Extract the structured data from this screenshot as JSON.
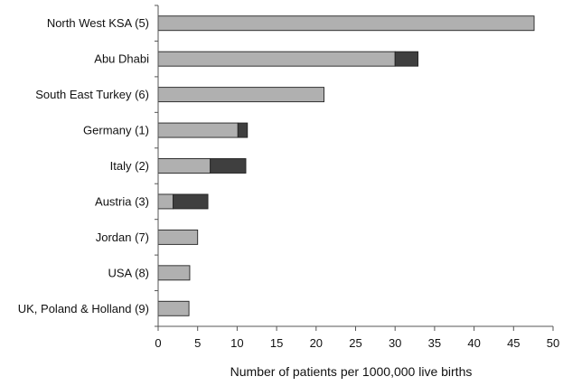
{
  "chart_data": {
    "type": "bar",
    "orientation": "horizontal",
    "stacked": true,
    "categories": [
      "North West KSA (5)",
      "Abu Dhabi",
      "South East Turkey (6)",
      "Germany (1)",
      "Italy (2)",
      "Austria (3)",
      "Jordan (7)",
      "USA (8)",
      "UK, Poland & Holland (9)"
    ],
    "series": [
      {
        "color": "#b0b0b0",
        "values": [
          47.6,
          30.0,
          21.0,
          10.1,
          6.6,
          1.9,
          5.0,
          4.0,
          3.9
        ]
      },
      {
        "color": "#3f3f3f",
        "values": [
          0,
          2.9,
          0,
          1.2,
          4.5,
          4.4,
          0,
          0,
          0
        ]
      }
    ],
    "xlabel": "Number of patients per 1000,000 live births",
    "xlim": [
      0,
      50
    ],
    "xticks": [
      0,
      5,
      10,
      15,
      20,
      25,
      30,
      35,
      40,
      45,
      50
    ],
    "grid": false,
    "legend": "none"
  }
}
